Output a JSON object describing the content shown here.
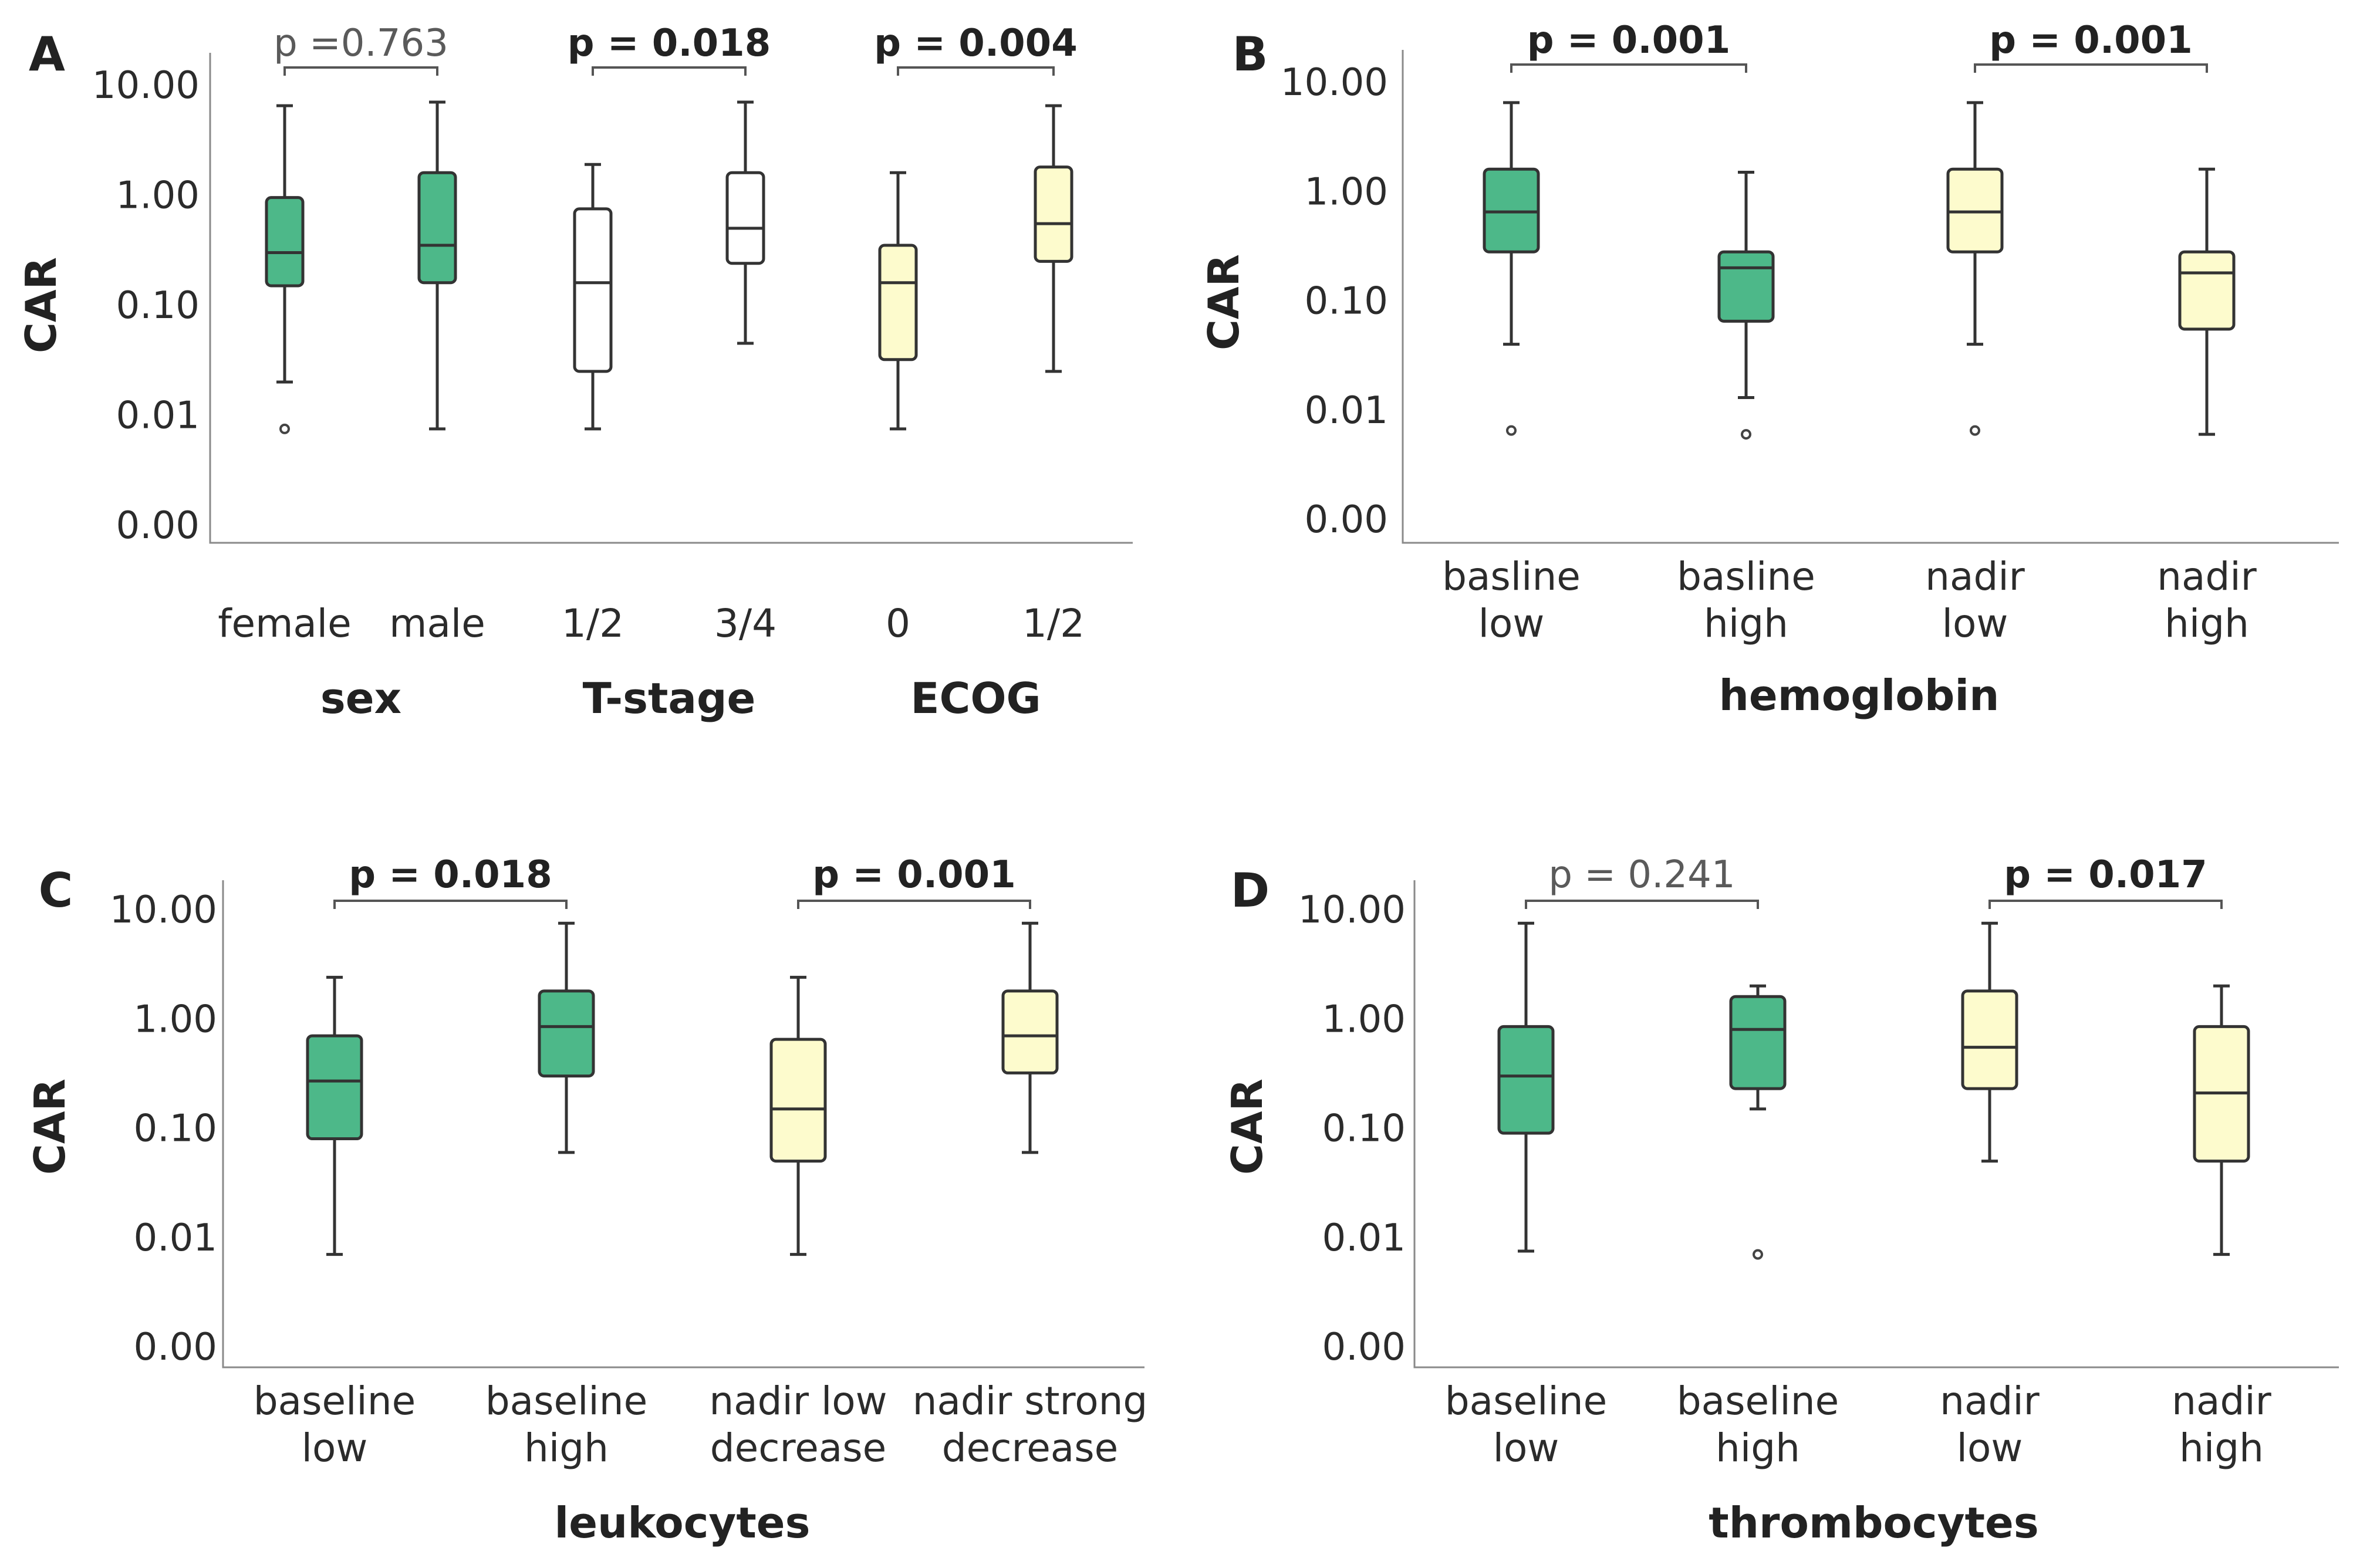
{
  "colors": {
    "green": "#4db889",
    "yellow": "#fdfbcd",
    "white": "#ffffff",
    "ink": "#333333"
  },
  "chart_data": [
    {
      "panel": "A",
      "type": "box",
      "ylabel": "CAR",
      "yscale": "log",
      "yticks": [
        {
          "value": 0.001,
          "label": "0.00"
        },
        {
          "value": 0.01,
          "label": "0.01"
        },
        {
          "value": 0.1,
          "label": "0.10"
        },
        {
          "value": 1,
          "label": "1.00"
        },
        {
          "value": 10,
          "label": "10.00"
        }
      ],
      "boxes": [
        {
          "label": [
            "female"
          ],
          "fill": "green",
          "min": 0.02,
          "q1": 0.15,
          "median": 0.3,
          "q3": 0.95,
          "max": 6.5,
          "outliers": [
            0.0075
          ]
        },
        {
          "label": [
            "male"
          ],
          "fill": "green",
          "min": 0.0075,
          "q1": 0.16,
          "median": 0.35,
          "q3": 1.6,
          "max": 7.0,
          "outliers": []
        },
        {
          "label": [
            "1/2"
          ],
          "fill": "white",
          "min": 0.0075,
          "q1": 0.025,
          "median": 0.16,
          "q3": 0.75,
          "max": 1.9,
          "outliers": []
        },
        {
          "label": [
            "3/4"
          ],
          "fill": "white",
          "min": 0.045,
          "q1": 0.24,
          "median": 0.5,
          "q3": 1.6,
          "max": 7.0,
          "outliers": []
        },
        {
          "label": [
            "0"
          ],
          "fill": "yellow",
          "min": 0.0075,
          "q1": 0.032,
          "median": 0.16,
          "q3": 0.35,
          "max": 1.6,
          "outliers": []
        },
        {
          "label": [
            "1/2"
          ],
          "fill": "yellow",
          "min": 0.025,
          "q1": 0.25,
          "median": 0.55,
          "q3": 1.8,
          "max": 6.5,
          "outliers": []
        }
      ],
      "groups": [
        {
          "label": "sex",
          "from": 0,
          "to": 1
        },
        {
          "label": "T-stage",
          "from": 2,
          "to": 3
        },
        {
          "label": "ECOG",
          "from": 4,
          "to": 5
        }
      ],
      "comparisons": [
        {
          "from": 0,
          "to": 1,
          "text": "p =0.763",
          "significant": false
        },
        {
          "from": 2,
          "to": 3,
          "text": "p = 0.018",
          "significant": true
        },
        {
          "from": 4,
          "to": 5,
          "text": "p = 0.004",
          "significant": true
        }
      ]
    },
    {
      "panel": "B",
      "type": "box",
      "ylabel": "CAR",
      "yscale": "log",
      "yticks": [
        {
          "value": 0.001,
          "label": "0.00"
        },
        {
          "value": 0.01,
          "label": "0.01"
        },
        {
          "value": 0.1,
          "label": "0.10"
        },
        {
          "value": 1,
          "label": "1.00"
        },
        {
          "value": 10,
          "label": "10.00"
        }
      ],
      "boxes": [
        {
          "label": [
            "basline",
            "low"
          ],
          "fill": "green",
          "min": 0.04,
          "q1": 0.28,
          "median": 0.65,
          "q3": 1.6,
          "max": 6.5,
          "outliers": [
            0.0065
          ]
        },
        {
          "label": [
            "basline",
            "high"
          ],
          "fill": "green",
          "min": 0.013,
          "q1": 0.065,
          "median": 0.2,
          "q3": 0.28,
          "max": 1.5,
          "outliers": [
            0.006
          ]
        },
        {
          "label": [
            "nadir",
            "low"
          ],
          "fill": "yellow",
          "min": 0.04,
          "q1": 0.28,
          "median": 0.65,
          "q3": 1.6,
          "max": 6.5,
          "outliers": [
            0.0065
          ]
        },
        {
          "label": [
            "nadir",
            "high"
          ],
          "fill": "yellow",
          "min": 0.006,
          "q1": 0.055,
          "median": 0.18,
          "q3": 0.28,
          "max": 1.6,
          "outliers": []
        }
      ],
      "groups": [
        {
          "label": "hemoglobin",
          "from": 0,
          "to": 3
        }
      ],
      "comparisons": [
        {
          "from": 0,
          "to": 1,
          "text": "p = 0.001",
          "significant": true
        },
        {
          "from": 2,
          "to": 3,
          "text": "p = 0.001",
          "significant": true
        }
      ]
    },
    {
      "panel": "C",
      "type": "box",
      "ylabel": "CAR",
      "yscale": "log",
      "yticks": [
        {
          "value": 0.001,
          "label": "0.00"
        },
        {
          "value": 0.01,
          "label": "0.01"
        },
        {
          "value": 0.1,
          "label": "0.10"
        },
        {
          "value": 1,
          "label": "1.00"
        },
        {
          "value": 10,
          "label": "10.00"
        }
      ],
      "boxes": [
        {
          "label": [
            "baseline",
            "low"
          ],
          "fill": "green",
          "min": 0.007,
          "q1": 0.08,
          "median": 0.27,
          "q3": 0.7,
          "max": 2.4,
          "outliers": []
        },
        {
          "label": [
            "baseline",
            "high"
          ],
          "fill": "green",
          "min": 0.06,
          "q1": 0.3,
          "median": 0.85,
          "q3": 1.8,
          "max": 7.5,
          "outliers": []
        },
        {
          "label": [
            "nadir low",
            "decrease"
          ],
          "fill": "yellow",
          "min": 0.007,
          "q1": 0.05,
          "median": 0.15,
          "q3": 0.65,
          "max": 2.4,
          "outliers": []
        },
        {
          "label": [
            "nadir strong",
            "decrease"
          ],
          "fill": "yellow",
          "min": 0.06,
          "q1": 0.32,
          "median": 0.7,
          "q3": 1.8,
          "max": 7.5,
          "outliers": []
        }
      ],
      "groups": [
        {
          "label": "leukocytes",
          "from": 0,
          "to": 3
        }
      ],
      "comparisons": [
        {
          "from": 0,
          "to": 1,
          "text": "p = 0.018",
          "significant": true
        },
        {
          "from": 2,
          "to": 3,
          "text": "p = 0.001",
          "significant": true
        }
      ]
    },
    {
      "panel": "D",
      "type": "box",
      "ylabel": "CAR",
      "yscale": "log",
      "yticks": [
        {
          "value": 0.001,
          "label": "0.00"
        },
        {
          "value": 0.01,
          "label": "0.01"
        },
        {
          "value": 0.1,
          "label": "0.10"
        },
        {
          "value": 1,
          "label": "1.00"
        },
        {
          "value": 10,
          "label": "10.00"
        }
      ],
      "boxes": [
        {
          "label": [
            "baseline",
            "low"
          ],
          "fill": "green",
          "min": 0.0075,
          "q1": 0.09,
          "median": 0.3,
          "q3": 0.85,
          "max": 7.5,
          "outliers": []
        },
        {
          "label": [
            "baseline",
            "high"
          ],
          "fill": "green",
          "min": 0.15,
          "q1": 0.23,
          "median": 0.8,
          "q3": 1.6,
          "max": 2.0,
          "outliers": [
            0.007
          ]
        },
        {
          "label": [
            "nadir",
            "low"
          ],
          "fill": "yellow",
          "min": 0.05,
          "q1": 0.23,
          "median": 0.55,
          "q3": 1.8,
          "max": 7.5,
          "outliers": []
        },
        {
          "label": [
            "nadir",
            "high"
          ],
          "fill": "yellow",
          "min": 0.007,
          "q1": 0.05,
          "median": 0.21,
          "q3": 0.85,
          "max": 2.0,
          "outliers": []
        }
      ],
      "groups": [
        {
          "label": "thrombocytes",
          "from": 0,
          "to": 3
        }
      ],
      "comparisons": [
        {
          "from": 0,
          "to": 1,
          "text": "p = 0.241",
          "significant": false
        },
        {
          "from": 2,
          "to": 3,
          "text": "p = 0.017",
          "significant": true
        }
      ]
    }
  ]
}
